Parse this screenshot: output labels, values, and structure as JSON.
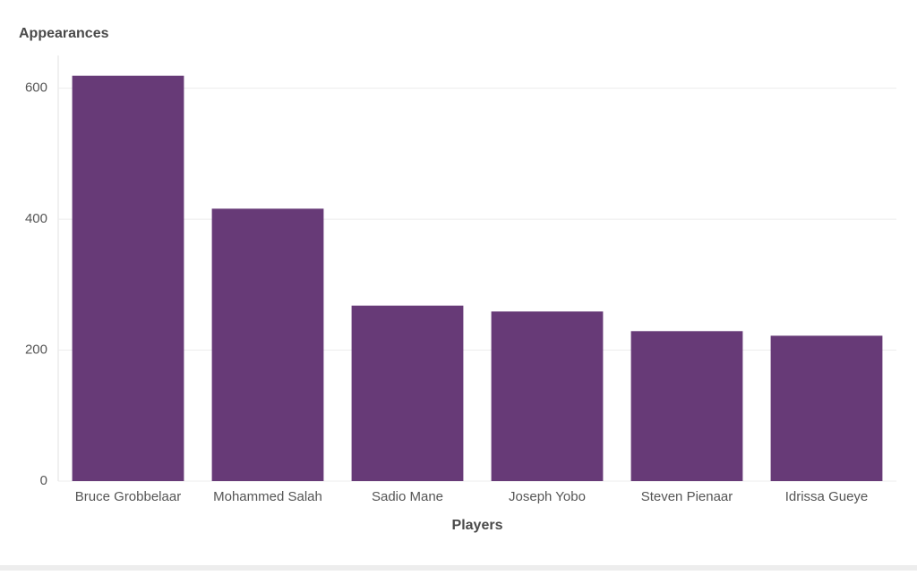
{
  "chart_data": {
    "type": "bar",
    "y_axis_title": "Appearances",
    "x_axis_title": "Players",
    "categories": [
      "Bruce Grobbelaar",
      "Mohammed Salah",
      "Sadio Mane",
      "Joseph Yobo",
      "Steven Pienaar",
      "Idrissa Gueye"
    ],
    "values": [
      619,
      416,
      268,
      259,
      229,
      222
    ],
    "color": "#673a77",
    "ylim": [
      0,
      650
    ],
    "yticks": [
      0,
      200,
      400,
      600
    ],
    "grid": true
  }
}
